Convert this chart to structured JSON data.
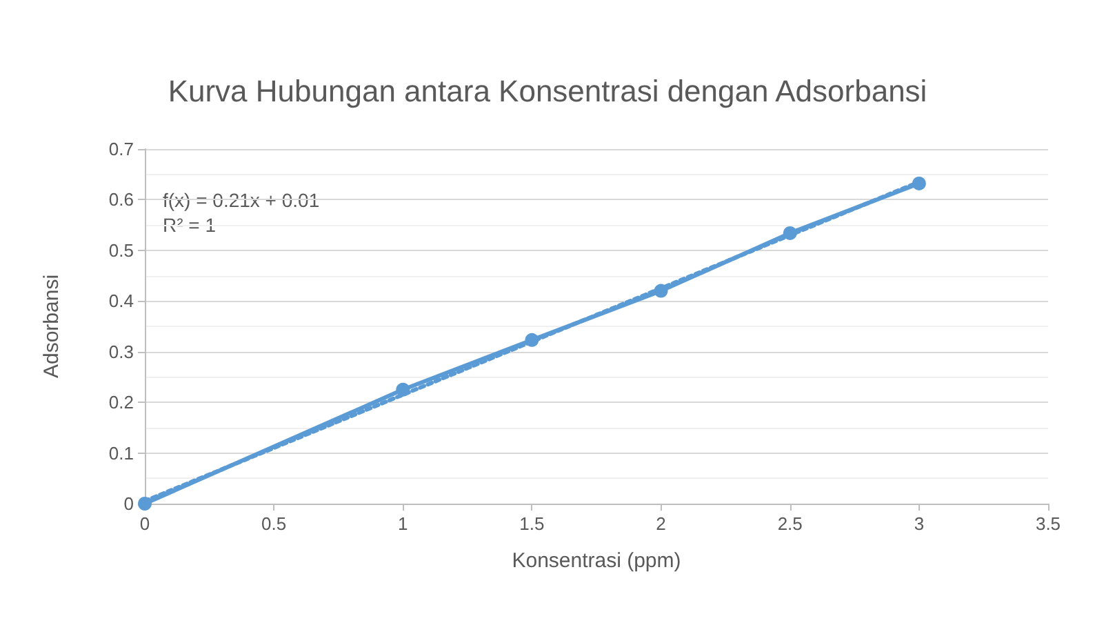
{
  "chart_data": {
    "type": "line",
    "title": "Kurva Hubungan antara Konsentrasi dengan Adsorbansi",
    "xlabel": "Konsentrasi (ppm)",
    "ylabel": "Adsorbansi",
    "x": [
      0,
      1,
      1.5,
      2,
      2.5,
      3
    ],
    "series": [
      {
        "color": "#5b9bd5",
        "marker": "circle",
        "line_style": "solid",
        "values": [
          0,
          0.225,
          0.323,
          0.42,
          0.534,
          0.632
        ]
      },
      {
        "type": "line",
        "color": "#5b9bd5",
        "marker": "none",
        "line_style": "dotted",
        "x": [
          0,
          3
        ],
        "values": [
          0.005,
          0.635
        ]
      }
    ],
    "annotations": [
      "f(x) = 0.21x + 0.01",
      "R² = 1"
    ],
    "xlim": [
      0,
      3.5
    ],
    "xticks": [
      0,
      0.5,
      1,
      1.5,
      2,
      2.5,
      3,
      3.5
    ],
    "ylim": [
      0,
      0.7
    ],
    "yticks": [
      0,
      0.1,
      0.2,
      0.3,
      0.4,
      0.5,
      0.6,
      0.7
    ],
    "grid": "y"
  }
}
